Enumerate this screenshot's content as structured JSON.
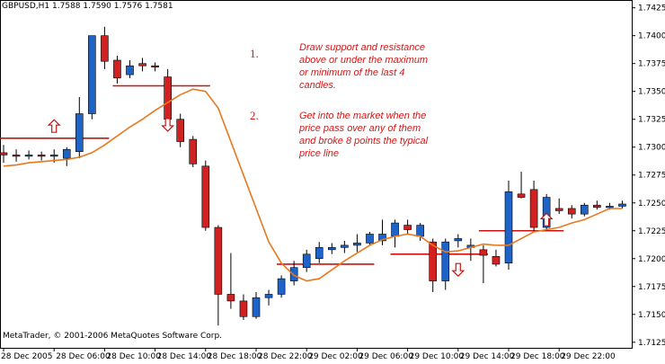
{
  "header": {
    "symbol": "GBPUSD,H1",
    "ohlc": "1.7588 1.7590 1.7576 1.7581"
  },
  "copyright": "MetaTrader, © 2001-2006 MetaQuotes Software Corp.",
  "annotations": {
    "step1_num": "1.",
    "step1_text_l1": "Draw support and resistance",
    "step1_text_l2": "above or under the maximum",
    "step1_text_l3": "or minimum of the last 4",
    "step1_text_l4": "candles.",
    "step2_num": "2.",
    "step2_text_l1": "Get into the market when the",
    "step2_text_l2": "price pass over any of them",
    "step2_text_l3": "and broke 8 points the typical",
    "step2_text_l4": "price  line"
  },
  "colors": {
    "bull": "#1e64c8",
    "bear": "#d32020",
    "ma": "#e8781e",
    "level": "#cc1111",
    "text_red": "#d01818"
  },
  "chart_data": {
    "type": "candlestick",
    "ylim": [
      1.712,
      1.7432
    ],
    "y_ticks": [
      "1.7425",
      "1.7400",
      "1.7375",
      "1.7350",
      "1.7325",
      "1.7300",
      "1.7275",
      "1.7250",
      "1.7225",
      "1.7200",
      "1.7175",
      "1.7150",
      "1.7125"
    ],
    "x_ticks": [
      "28 Dec 2005",
      "28 Dec 06:00",
      "28 Dec 10:00",
      "28 Dec 14:00",
      "28 Dec 18:00",
      "28 Dec 22:00",
      "29 Dec 02:00",
      "29 Dec 06:00",
      "29 Dec 10:00",
      "29 Dec 14:00",
      "29 Dec 18:00",
      "29 Dec 22:00"
    ],
    "candles": [
      {
        "o": 1.7295,
        "h": 1.7302,
        "l": 1.7286,
        "c": 1.7293
      },
      {
        "o": 1.7293,
        "h": 1.7298,
        "l": 1.7287,
        "c": 1.7292
      },
      {
        "o": 1.7292,
        "h": 1.7297,
        "l": 1.7289,
        "c": 1.7293
      },
      {
        "o": 1.7293,
        "h": 1.7296,
        "l": 1.7288,
        "c": 1.7292
      },
      {
        "o": 1.7292,
        "h": 1.7298,
        "l": 1.7286,
        "c": 1.7293
      },
      {
        "o": 1.729,
        "h": 1.73,
        "l": 1.7283,
        "c": 1.7298
      },
      {
        "o": 1.7296,
        "h": 1.7345,
        "l": 1.729,
        "c": 1.733
      },
      {
        "o": 1.733,
        "h": 1.74,
        "l": 1.7325,
        "c": 1.74
      },
      {
        "o": 1.74,
        "h": 1.7408,
        "l": 1.737,
        "c": 1.7377
      },
      {
        "o": 1.7378,
        "h": 1.7382,
        "l": 1.7357,
        "c": 1.7362
      },
      {
        "o": 1.7365,
        "h": 1.7378,
        "l": 1.7362,
        "c": 1.7373
      },
      {
        "o": 1.7375,
        "h": 1.738,
        "l": 1.7368,
        "c": 1.7373
      },
      {
        "o": 1.7373,
        "h": 1.7376,
        "l": 1.7368,
        "c": 1.7372
      },
      {
        "o": 1.7363,
        "h": 1.737,
        "l": 1.7318,
        "c": 1.7325
      },
      {
        "o": 1.7325,
        "h": 1.733,
        "l": 1.73,
        "c": 1.7305
      },
      {
        "o": 1.7307,
        "h": 1.731,
        "l": 1.7282,
        "c": 1.7285
      },
      {
        "o": 1.7283,
        "h": 1.7288,
        "l": 1.7225,
        "c": 1.7228
      },
      {
        "o": 1.7228,
        "h": 1.723,
        "l": 1.714,
        "c": 1.7168
      },
      {
        "o": 1.7168,
        "h": 1.7205,
        "l": 1.7155,
        "c": 1.7162
      },
      {
        "o": 1.7162,
        "h": 1.7168,
        "l": 1.7145,
        "c": 1.7148
      },
      {
        "o": 1.7148,
        "h": 1.717,
        "l": 1.7146,
        "c": 1.7165
      },
      {
        "o": 1.7165,
        "h": 1.7172,
        "l": 1.7158,
        "c": 1.7168
      },
      {
        "o": 1.7168,
        "h": 1.7185,
        "l": 1.7165,
        "c": 1.7182
      },
      {
        "o": 1.718,
        "h": 1.7198,
        "l": 1.7176,
        "c": 1.7192
      },
      {
        "o": 1.7192,
        "h": 1.7208,
        "l": 1.7188,
        "c": 1.7204
      },
      {
        "o": 1.72,
        "h": 1.7215,
        "l": 1.7196,
        "c": 1.721
      },
      {
        "o": 1.7208,
        "h": 1.7214,
        "l": 1.7204,
        "c": 1.721
      },
      {
        "o": 1.721,
        "h": 1.7216,
        "l": 1.7205,
        "c": 1.7212
      },
      {
        "o": 1.7212,
        "h": 1.7222,
        "l": 1.7206,
        "c": 1.7214
      },
      {
        "o": 1.7214,
        "h": 1.7224,
        "l": 1.7212,
        "c": 1.7222
      },
      {
        "o": 1.7216,
        "h": 1.7235,
        "l": 1.7212,
        "c": 1.7222
      },
      {
        "o": 1.722,
        "h": 1.7235,
        "l": 1.721,
        "c": 1.7232
      },
      {
        "o": 1.723,
        "h": 1.7235,
        "l": 1.7222,
        "c": 1.7226
      },
      {
        "o": 1.722,
        "h": 1.7232,
        "l": 1.7216,
        "c": 1.723
      },
      {
        "o": 1.7215,
        "h": 1.7218,
        "l": 1.717,
        "c": 1.718
      },
      {
        "o": 1.718,
        "h": 1.7218,
        "l": 1.7172,
        "c": 1.7215
      },
      {
        "o": 1.7216,
        "h": 1.7222,
        "l": 1.721,
        "c": 1.7218
      },
      {
        "o": 1.721,
        "h": 1.7218,
        "l": 1.7198,
        "c": 1.7212
      },
      {
        "o": 1.7208,
        "h": 1.7212,
        "l": 1.7178,
        "c": 1.7203
      },
      {
        "o": 1.7202,
        "h": 1.7208,
        "l": 1.7193,
        "c": 1.7195
      },
      {
        "o": 1.7196,
        "h": 1.727,
        "l": 1.719,
        "c": 1.726
      },
      {
        "o": 1.7258,
        "h": 1.7278,
        "l": 1.7254,
        "c": 1.7255
      },
      {
        "o": 1.7262,
        "h": 1.727,
        "l": 1.7225,
        "c": 1.7228
      },
      {
        "o": 1.7228,
        "h": 1.7258,
        "l": 1.7225,
        "c": 1.7255
      },
      {
        "o": 1.7245,
        "h": 1.7254,
        "l": 1.724,
        "c": 1.7243
      },
      {
        "o": 1.7245,
        "h": 1.7248,
        "l": 1.7236,
        "c": 1.724
      },
      {
        "o": 1.724,
        "h": 1.725,
        "l": 1.7238,
        "c": 1.7248
      },
      {
        "o": 1.7248,
        "h": 1.7252,
        "l": 1.7244,
        "c": 1.7246
      },
      {
        "o": 1.7246,
        "h": 1.725,
        "l": 1.7244,
        "c": 1.7247
      },
      {
        "o": 1.7247,
        "h": 1.7252,
        "l": 1.7245,
        "c": 1.7249
      }
    ],
    "series": [
      {
        "values": [
          1.7283,
          1.7284,
          1.7286,
          1.7287,
          1.7288,
          1.7289,
          1.7291,
          1.7295,
          1.7302,
          1.731,
          1.7318,
          1.7325,
          1.7333,
          1.734,
          1.7347,
          1.7352,
          1.735,
          1.7335,
          1.7305,
          1.7275,
          1.7245,
          1.7215,
          1.7196,
          1.7185,
          1.718,
          1.7182,
          1.719,
          1.7198,
          1.7205,
          1.7212,
          1.7217,
          1.722,
          1.7222,
          1.722,
          1.7212,
          1.7206,
          1.7207,
          1.721,
          1.7213,
          1.7212,
          1.7212,
          1.7218,
          1.7224,
          1.7226,
          1.7228,
          1.7232,
          1.7235,
          1.724,
          1.7245,
          1.7245
        ]
      }
    ],
    "levels": [
      {
        "price": 1.7308,
        "from": 0,
        "to": 8
      },
      {
        "price": 1.7355,
        "from": 9,
        "to": 16
      },
      {
        "price": 1.7195,
        "from": 22,
        "to": 29
      },
      {
        "price": 1.7204,
        "from": 31,
        "to": 38
      },
      {
        "price": 1.7225,
        "from": 38,
        "to": 44
      }
    ],
    "arrows": [
      {
        "dir": "up",
        "x_index": 4,
        "price": 1.7319
      },
      {
        "dir": "down",
        "x_index": 13,
        "price": 1.732
      },
      {
        "dir": "down",
        "x_index": 36,
        "price": 1.719
      },
      {
        "dir": "up",
        "x_index": 43,
        "price": 1.7235
      }
    ]
  }
}
